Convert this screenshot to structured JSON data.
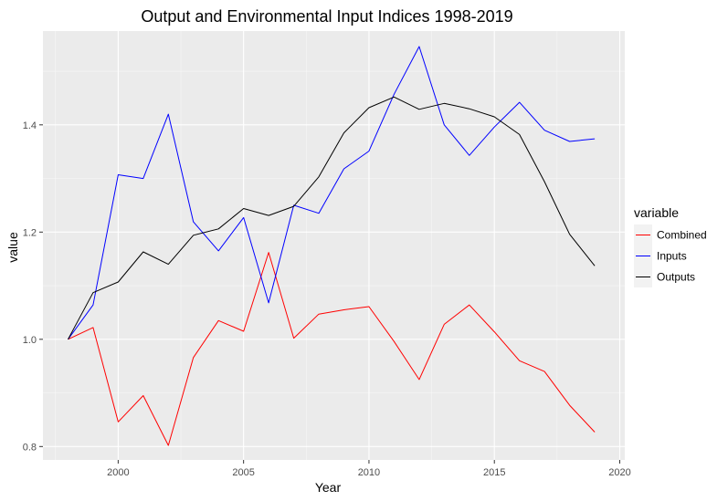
{
  "chart_data": {
    "type": "line",
    "title": "Output and Environmental Input Indices 1998-2019",
    "xlabel": "Year",
    "ylabel": "value",
    "xlim": [
      1997.0,
      2020.2
    ],
    "ylim": [
      0.775,
      1.575
    ],
    "x_ticks": [
      2000,
      2005,
      2010,
      2015,
      2020
    ],
    "y_ticks": [
      0.8,
      1.0,
      1.2,
      1.4
    ],
    "x_tick_labels": [
      "2000",
      "2005",
      "2010",
      "2015",
      "2020"
    ],
    "y_tick_labels": [
      "0.8",
      "1.0",
      "1.2",
      "1.4"
    ],
    "grid": true,
    "legend": {
      "title": "variable",
      "position": "right"
    },
    "x": [
      1998,
      1999,
      2000,
      2001,
      2002,
      2003,
      2004,
      2005,
      2006,
      2007,
      2008,
      2009,
      2010,
      2011,
      2012,
      2013,
      2014,
      2015,
      2016,
      2017,
      2018,
      2019
    ],
    "series": [
      {
        "name": "Combined",
        "color": "#ff0000",
        "values": [
          1.0,
          1.022,
          0.846,
          0.895,
          0.802,
          0.966,
          1.035,
          1.015,
          1.162,
          1.002,
          1.047,
          1.055,
          1.061,
          0.996,
          0.925,
          1.028,
          1.064,
          1.014,
          0.96,
          0.94,
          0.877,
          0.827
        ]
      },
      {
        "name": "Inputs",
        "color": "#0000ff",
        "values": [
          1.0,
          1.064,
          1.307,
          1.3,
          1.42,
          1.219,
          1.165,
          1.227,
          1.068,
          1.25,
          1.235,
          1.318,
          1.351,
          1.457,
          1.546,
          1.4,
          1.343,
          1.396,
          1.442,
          1.39,
          1.369,
          1.374
        ]
      },
      {
        "name": "Outputs",
        "color": "#000000",
        "values": [
          1.0,
          1.087,
          1.107,
          1.163,
          1.14,
          1.194,
          1.206,
          1.244,
          1.231,
          1.248,
          1.303,
          1.385,
          1.432,
          1.452,
          1.429,
          1.44,
          1.43,
          1.415,
          1.382,
          1.294,
          1.196,
          1.137
        ]
      }
    ]
  },
  "colors": {
    "panel_background": "#ebebeb",
    "grid_major": "#ffffff",
    "grid_minor": "#f7f7f7",
    "tick_text": "#4d4d4d"
  }
}
